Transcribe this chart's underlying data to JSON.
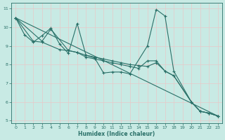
{
  "xlabel": "Humidex (Indice chaleur)",
  "xlim": [
    -0.5,
    23.5
  ],
  "ylim": [
    4.85,
    11.3
  ],
  "xticks": [
    0,
    1,
    2,
    3,
    4,
    5,
    6,
    7,
    8,
    9,
    10,
    11,
    12,
    13,
    14,
    15,
    16,
    17,
    18,
    19,
    20,
    21,
    22,
    23
  ],
  "yticks": [
    5,
    6,
    7,
    8,
    9,
    10,
    11
  ],
  "bg_color": "#c8eae4",
  "grid_color_h": "#e8c8c8",
  "grid_color_v": "#e8c8c8",
  "line_color": "#2a7068",
  "series": [
    {
      "x": [
        0,
        1,
        2,
        3,
        4,
        5,
        6,
        7,
        8,
        9,
        10,
        11,
        12,
        13,
        15,
        16,
        17,
        18,
        20,
        21,
        22,
        23
      ],
      "y": [
        10.5,
        9.6,
        9.2,
        9.55,
        9.95,
        9.1,
        8.6,
        10.2,
        8.5,
        8.35,
        7.55,
        7.6,
        7.6,
        7.5,
        9.0,
        10.95,
        10.6,
        7.65,
        6.0,
        5.5,
        5.4,
        5.25
      ]
    },
    {
      "x": [
        0,
        2,
        3,
        5,
        6,
        7,
        8,
        9,
        10,
        11,
        12,
        13,
        14,
        15,
        16,
        17,
        18,
        20,
        21,
        22,
        23
      ],
      "y": [
        10.5,
        9.25,
        9.2,
        8.8,
        8.75,
        8.65,
        8.5,
        8.4,
        8.3,
        8.2,
        8.1,
        8.0,
        7.95,
        7.9,
        8.1,
        7.65,
        7.4,
        6.0,
        5.5,
        5.4,
        5.25
      ]
    },
    {
      "x": [
        0,
        3,
        4,
        6,
        7,
        8,
        9,
        10,
        11,
        12,
        13,
        14,
        15,
        16,
        17,
        18,
        20,
        21,
        22,
        23
      ],
      "y": [
        10.5,
        9.25,
        9.9,
        8.75,
        8.65,
        8.4,
        8.3,
        8.2,
        8.1,
        8.0,
        7.9,
        7.8,
        8.2,
        8.2,
        7.65,
        7.4,
        6.0,
        5.5,
        5.4,
        5.25
      ]
    },
    {
      "x": [
        0,
        23
      ],
      "y": [
        10.5,
        5.25
      ]
    }
  ]
}
